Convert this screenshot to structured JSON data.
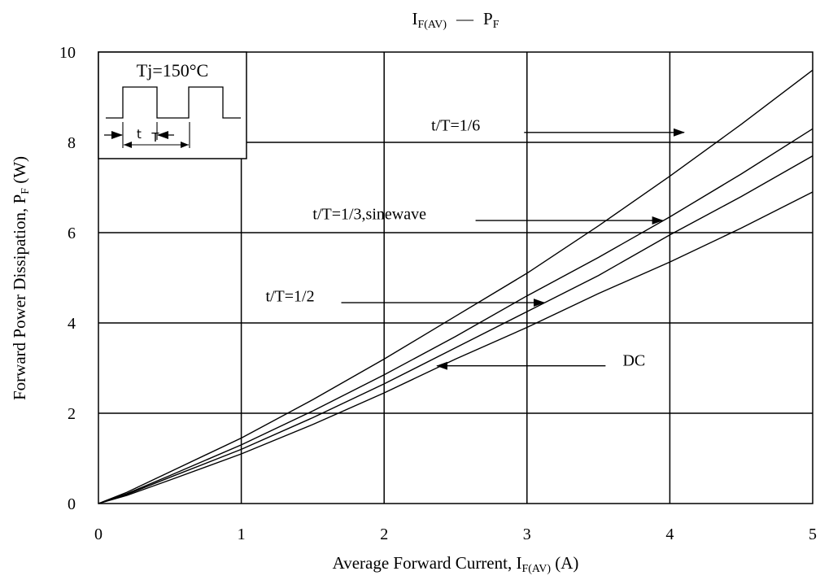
{
  "chart_data": {
    "type": "line",
    "title_main": "I",
    "title_main_sub": "F(AV)",
    "title_dash": "—",
    "title_right": "P",
    "title_right_sub": "F",
    "xlabel_main": "Average Forward Current, I",
    "xlabel_sub": "F(AV)",
    "xlabel_unit": " (A)",
    "ylabel_main": "Forward Power Dissipation, P",
    "ylabel_sub": "F",
    "ylabel_unit": " (W)",
    "xlim": [
      0,
      5
    ],
    "ylim": [
      0,
      10
    ],
    "x_ticks": [
      "0",
      "1",
      "2",
      "3",
      "4",
      "5"
    ],
    "y_ticks": [
      "0",
      "2",
      "4",
      "6",
      "8",
      "10"
    ],
    "grid": true,
    "inset": {
      "title": "Tj=150°C",
      "t_label": "t",
      "T_label": "T"
    },
    "series": [
      {
        "key": "t_T_1_6",
        "points": [
          [
            0,
            0
          ],
          [
            0.2,
            0.25
          ],
          [
            0.5,
            0.7
          ],
          [
            1,
            1.45
          ],
          [
            1.5,
            2.3
          ],
          [
            2,
            3.2
          ],
          [
            2.5,
            4.15
          ],
          [
            3,
            5.1
          ],
          [
            3.5,
            6.15
          ],
          [
            4,
            7.25
          ],
          [
            4.5,
            8.4
          ],
          [
            5,
            9.6
          ]
        ]
      },
      {
        "key": "t_T_1_3",
        "points": [
          [
            0,
            0
          ],
          [
            0.2,
            0.22
          ],
          [
            0.5,
            0.62
          ],
          [
            1,
            1.3
          ],
          [
            1.5,
            2.05
          ],
          [
            2,
            2.85
          ],
          [
            2.5,
            3.7
          ],
          [
            3,
            4.6
          ],
          [
            3.5,
            5.45
          ],
          [
            4,
            6.35
          ],
          [
            4.5,
            7.3
          ],
          [
            5,
            8.3
          ]
        ]
      },
      {
        "key": "t_T_1_2",
        "points": [
          [
            0,
            0
          ],
          [
            0.2,
            0.2
          ],
          [
            0.5,
            0.58
          ],
          [
            1,
            1.2
          ],
          [
            1.5,
            1.9
          ],
          [
            2,
            2.65
          ],
          [
            2.5,
            3.45
          ],
          [
            3,
            4.25
          ],
          [
            3.5,
            5.05
          ],
          [
            4,
            5.95
          ],
          [
            4.5,
            6.8
          ],
          [
            5,
            7.7
          ]
        ]
      },
      {
        "key": "dc",
        "points": [
          [
            0,
            0
          ],
          [
            0.2,
            0.18
          ],
          [
            0.5,
            0.52
          ],
          [
            1,
            1.1
          ],
          [
            1.5,
            1.75
          ],
          [
            2,
            2.45
          ],
          [
            2.5,
            3.2
          ],
          [
            3,
            3.9
          ],
          [
            3.5,
            4.65
          ],
          [
            4,
            5.35
          ],
          [
            4.5,
            6.1
          ],
          [
            5,
            6.9
          ]
        ]
      }
    ],
    "annotations": [
      {
        "text": "t/T=1/6",
        "text_x": 2.33,
        "text_y": 8.26,
        "arrow_from": [
          2.98,
          8.22
        ],
        "arrow_to": [
          4.1,
          8.22
        ]
      },
      {
        "text": "t/T=1/3,sinewave",
        "text_x": 1.5,
        "text_y": 6.3,
        "arrow_from": [
          2.64,
          6.27
        ],
        "arrow_to": [
          3.95,
          6.27
        ]
      },
      {
        "text": "t/T=1/2",
        "text_x": 1.17,
        "text_y": 4.48,
        "arrow_from": [
          1.7,
          4.45
        ],
        "arrow_to": [
          3.12,
          4.45
        ]
      },
      {
        "text": "DC",
        "text_x": 3.67,
        "text_y": 3.05,
        "arrow_from": [
          3.55,
          3.05
        ],
        "arrow_to": [
          2.37,
          3.05
        ]
      }
    ]
  }
}
